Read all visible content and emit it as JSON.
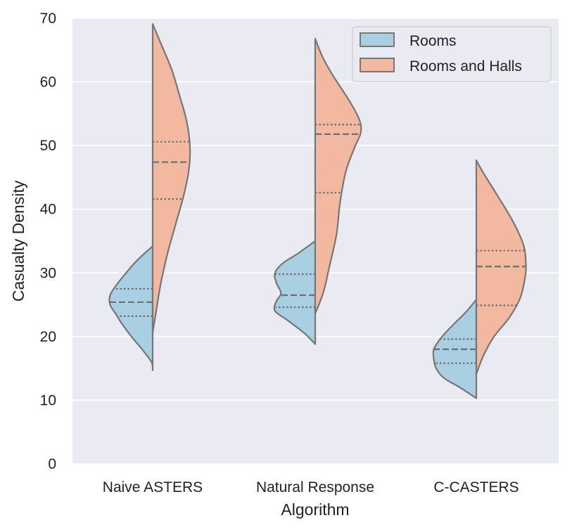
{
  "chart_data": {
    "type": "violin",
    "split": true,
    "title": "",
    "xlabel": "Algorithm",
    "ylabel": "Casualty Density",
    "ylim": [
      0,
      70
    ],
    "yticks": [
      0,
      10,
      20,
      30,
      40,
      50,
      60,
      70
    ],
    "categories": [
      "Naive ASTERS",
      "Natural Response",
      "C-CASTERS"
    ],
    "legend": {
      "position": "top-right"
    },
    "series": [
      {
        "name": "Rooms",
        "side": "left",
        "color": "#a9cfe3",
        "violins": [
          {
            "ymin": 14.7,
            "ymax": 34.2,
            "quartiles": [
              23.2,
              25.4,
              27.5
            ],
            "profile": [
              [
                14.7,
                0
              ],
              [
                16,
                2
              ],
              [
                18,
                18
              ],
              [
                20,
                36
              ],
              [
                22,
                52
              ],
              [
                23.5,
                62
              ],
              [
                25,
                72
              ],
              [
                26.5,
                72
              ],
              [
                28,
                62
              ],
              [
                30,
                45
              ],
              [
                32,
                26
              ],
              [
                34.2,
                0
              ]
            ]
          },
          {
            "ymin": 18.8,
            "ymax": 35.0,
            "quartiles": [
              24.6,
              26.5,
              29.8
            ],
            "profile": [
              [
                18.8,
                0
              ],
              [
                20.5,
                18
              ],
              [
                22.5,
                46
              ],
              [
                24,
                68
              ],
              [
                25.5,
                66
              ],
              [
                26.8,
                58
              ],
              [
                28.5,
                66
              ],
              [
                30,
                68
              ],
              [
                31.5,
                55
              ],
              [
                33,
                30
              ],
              [
                35,
                0
              ]
            ]
          },
          {
            "ymin": 10.3,
            "ymax": 25.8,
            "quartiles": [
              15.8,
              18.0,
              19.6
            ],
            "profile": [
              [
                10.3,
                0
              ],
              [
                12,
                28
              ],
              [
                13.5,
                55
              ],
              [
                15,
                68
              ],
              [
                16.5,
                72
              ],
              [
                18,
                72
              ],
              [
                19.5,
                62
              ],
              [
                21,
                48
              ],
              [
                22.5,
                32
              ],
              [
                24,
                16
              ],
              [
                25.8,
                0
              ]
            ]
          }
        ]
      },
      {
        "name": "Rooms and Halls",
        "side": "right",
        "color": "#f2b9a0",
        "violins": [
          {
            "ymin": 20.6,
            "ymax": 69.1,
            "quartiles": [
              41.6,
              47.4,
              50.6
            ],
            "profile": [
              [
                20.6,
                0
              ],
              [
                24,
                6
              ],
              [
                28,
                13
              ],
              [
                33,
                25
              ],
              [
                38,
                40
              ],
              [
                42,
                52
              ],
              [
                46,
                61
              ],
              [
                50,
                63
              ],
              [
                54,
                57
              ],
              [
                58,
                45
              ],
              [
                62,
                32
              ],
              [
                66,
                14
              ],
              [
                69.1,
                0
              ]
            ]
          },
          {
            "ymin": 23.6,
            "ymax": 66.8,
            "quartiles": [
              42.6,
              51.8,
              53.3
            ],
            "profile": [
              [
                23.6,
                0
              ],
              [
                27,
                14
              ],
              [
                31,
                24
              ],
              [
                36,
                36
              ],
              [
                41,
                42
              ],
              [
                46,
                52
              ],
              [
                50,
                68
              ],
              [
                52,
                77
              ],
              [
                54,
                75
              ],
              [
                57,
                58
              ],
              [
                61,
                30
              ],
              [
                64,
                12
              ],
              [
                66.8,
                0
              ]
            ]
          },
          {
            "ymin": 14.1,
            "ymax": 47.7,
            "quartiles": [
              24.9,
              31.0,
              33.5
            ],
            "profile": [
              [
                14.1,
                0
              ],
              [
                17,
                12
              ],
              [
                20,
                30
              ],
              [
                23,
                56
              ],
              [
                26,
                74
              ],
              [
                29,
                82
              ],
              [
                31,
                84
              ],
              [
                34,
                81
              ],
              [
                37,
                68
              ],
              [
                40,
                50
              ],
              [
                43,
                30
              ],
              [
                46,
                10
              ],
              [
                47.7,
                0
              ]
            ]
          }
        ]
      }
    ]
  }
}
